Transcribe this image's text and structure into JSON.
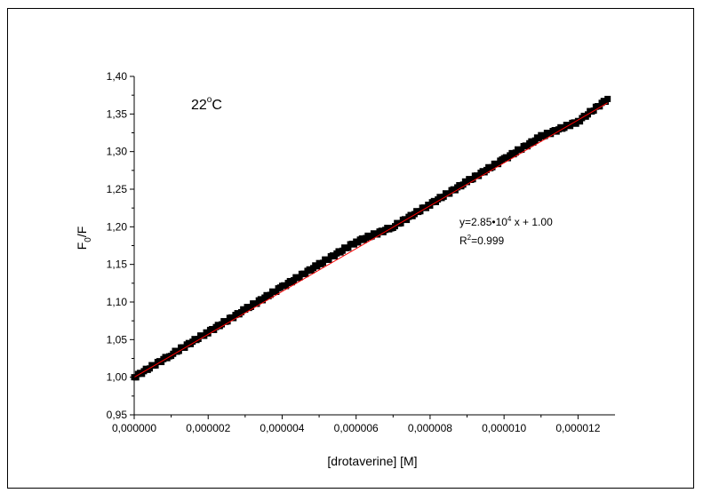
{
  "chart_data": {
    "type": "scatter",
    "xlabel": "[drotaverine] [M]",
    "ylabel_main": "F",
    "ylabel_sub": "0",
    "ylabel_tail": "/F",
    "xlim": [
      0,
      1.3e-05
    ],
    "ylim": [
      0.95,
      1.4
    ],
    "xticks": [
      0,
      2e-06,
      4e-06,
      6e-06,
      8e-06,
      1e-05,
      1.2e-05
    ],
    "xtick_labels": [
      "0,000000",
      "0,000002",
      "0,000004",
      "0,000006",
      "0,000008",
      "0,000010",
      "0,000012"
    ],
    "yticks": [
      0.95,
      1.0,
      1.05,
      1.1,
      1.15,
      1.2,
      1.25,
      1.3,
      1.35,
      1.4
    ],
    "ytick_labels": [
      "0,95",
      "1,00",
      "1,05",
      "1,10",
      "1,15",
      "1,20",
      "1,25",
      "1,30",
      "1,35",
      "1,40"
    ],
    "series": [
      {
        "marker": "square",
        "color": "#000000",
        "points": [
          [
            0.0,
            1.0
          ],
          [
            1e-06,
            1.03
          ],
          [
            2e-06,
            1.06
          ],
          [
            3e-06,
            1.09
          ],
          [
            4e-06,
            1.12
          ],
          [
            5e-06,
            1.15
          ],
          [
            6e-06,
            1.18
          ],
          [
            7e-06,
            1.2
          ],
          [
            8e-06,
            1.23
          ],
          [
            9e-06,
            1.26
          ],
          [
            1e-05,
            1.29
          ],
          [
            1.1e-05,
            1.32
          ],
          [
            1.2e-05,
            1.34
          ],
          [
            1.28e-05,
            1.37
          ]
        ]
      }
    ],
    "fit": {
      "slope": 28500,
      "intercept": 1.0,
      "x_range": [
        0.0,
        1.28e-05
      ],
      "color": "#ff0000"
    },
    "annotations": {
      "temperature": {
        "value": "22",
        "degree": "o",
        "unit": "C"
      },
      "equation": {
        "prefix": "y=2.85•10",
        "exponent": "4",
        "suffix": " x + 1.00"
      },
      "r_squared": {
        "prefix": "R",
        "exponent": "2",
        "suffix": "=0.999"
      }
    }
  }
}
